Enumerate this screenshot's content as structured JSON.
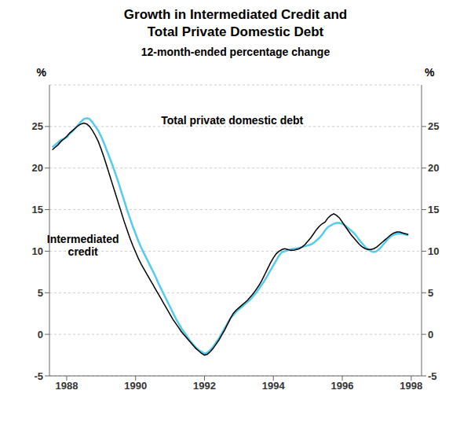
{
  "chart_data": {
    "type": "line",
    "title": "Growth in Intermediated Credit and\nTotal Private Domestic Debt",
    "subtitle": "12-month-ended percentage change",
    "ylabel": "%",
    "y2label": "%",
    "annotations": [
      "Total private domestic debt",
      "Intermediated\ncredit"
    ],
    "grid": true,
    "xlim": [
      1987.5,
      1998.3
    ],
    "xticks": [
      1988,
      1990,
      1992,
      1994,
      1996,
      1998
    ],
    "ylim": [
      -5,
      30
    ],
    "yticks": [
      -5,
      0,
      5,
      10,
      15,
      20,
      25
    ],
    "y2lim": [
      -5,
      30
    ],
    "y2ticks": [
      -5,
      0,
      5,
      10,
      15,
      20,
      25
    ],
    "x": [
      1987.583,
      1987.667,
      1987.75,
      1987.833,
      1987.917,
      1988.0,
      1988.083,
      1988.167,
      1988.25,
      1988.333,
      1988.417,
      1988.5,
      1988.583,
      1988.667,
      1988.75,
      1988.833,
      1988.917,
      1989.0,
      1989.083,
      1989.167,
      1989.25,
      1989.333,
      1989.417,
      1989.5,
      1989.583,
      1989.667,
      1989.75,
      1989.833,
      1989.917,
      1990.0,
      1990.083,
      1990.167,
      1990.25,
      1990.333,
      1990.417,
      1990.5,
      1990.583,
      1990.667,
      1990.75,
      1990.833,
      1990.917,
      1991.0,
      1991.083,
      1991.167,
      1991.25,
      1991.333,
      1991.417,
      1991.5,
      1991.583,
      1991.667,
      1991.75,
      1991.833,
      1991.917,
      1992.0,
      1992.083,
      1992.167,
      1992.25,
      1992.333,
      1992.417,
      1992.5,
      1992.583,
      1992.667,
      1992.75,
      1992.833,
      1992.917,
      1993.0,
      1993.083,
      1993.167,
      1993.25,
      1993.333,
      1993.417,
      1993.5,
      1993.583,
      1993.667,
      1993.75,
      1993.833,
      1993.917,
      1994.0,
      1994.083,
      1994.167,
      1994.25,
      1994.333,
      1994.417,
      1994.5,
      1994.583,
      1994.667,
      1994.75,
      1994.833,
      1994.917,
      1995.0,
      1995.083,
      1995.167,
      1995.25,
      1995.333,
      1995.417,
      1995.5,
      1995.583,
      1995.667,
      1995.75,
      1995.833,
      1995.917,
      1996.0,
      1996.083,
      1996.167,
      1996.25,
      1996.333,
      1996.417,
      1996.5,
      1996.583,
      1996.667,
      1996.75,
      1996.833,
      1996.917,
      1997.0,
      1997.083,
      1997.167,
      1997.25,
      1997.333,
      1997.417,
      1997.5,
      1997.583,
      1997.667,
      1997.75,
      1997.833,
      1997.917
    ],
    "series": [
      {
        "color": "#55ccee",
        "values": [
          22.5,
          22.8,
          23.1,
          23.4,
          23.5,
          23.7,
          24.1,
          24.4,
          24.8,
          25.2,
          25.6,
          25.9,
          26.0,
          25.9,
          25.5,
          25.0,
          24.5,
          23.8,
          23.0,
          22.1,
          21.2,
          20.3,
          19.3,
          18.3,
          17.2,
          16.1,
          15.0,
          14.0,
          13.0,
          12.1,
          11.2,
          10.4,
          9.7,
          9.0,
          8.3,
          7.6,
          6.9,
          6.1,
          5.4,
          4.7,
          4.0,
          3.3,
          2.6,
          1.9,
          1.3,
          0.7,
          0.2,
          -0.3,
          -0.8,
          -1.2,
          -1.6,
          -1.9,
          -2.1,
          -2.3,
          -2.2,
          -1.9,
          -1.5,
          -1.0,
          -0.5,
          0.1,
          0.7,
          1.3,
          1.9,
          2.3,
          2.7,
          3.0,
          3.3,
          3.6,
          3.9,
          4.2,
          4.6,
          5.0,
          5.5,
          6.0,
          6.5,
          7.1,
          7.7,
          8.3,
          8.9,
          9.5,
          9.9,
          10.0,
          10.1,
          10.2,
          10.3,
          10.3,
          10.4,
          10.5,
          10.6,
          10.7,
          10.8,
          11.0,
          11.3,
          11.6,
          12.0,
          12.5,
          12.9,
          13.1,
          13.3,
          13.4,
          13.4,
          13.3,
          13.1,
          12.8,
          12.5,
          12.2,
          11.8,
          11.3,
          10.9,
          10.5,
          10.2,
          10.0,
          9.9,
          10.0,
          10.3,
          10.7,
          11.1,
          11.5,
          11.8,
          12.0,
          12.1,
          12.1,
          12.1,
          12.0,
          11.9
        ]
      },
      {
        "color": "#000000",
        "values": [
          22.2,
          22.5,
          22.8,
          23.2,
          23.5,
          23.8,
          24.2,
          24.5,
          24.8,
          25.1,
          25.3,
          25.4,
          25.3,
          25.0,
          24.5,
          23.9,
          23.2,
          22.3,
          21.3,
          20.2,
          19.1,
          18.0,
          16.9,
          15.8,
          14.7,
          13.6,
          12.6,
          11.6,
          10.7,
          9.9,
          9.1,
          8.4,
          7.8,
          7.2,
          6.6,
          6.0,
          5.4,
          4.8,
          4.2,
          3.6,
          3.0,
          2.4,
          1.8,
          1.3,
          0.8,
          0.3,
          -0.1,
          -0.5,
          -0.9,
          -1.3,
          -1.7,
          -2.0,
          -2.3,
          -2.5,
          -2.4,
          -2.1,
          -1.7,
          -1.2,
          -0.7,
          -0.1,
          0.5,
          1.2,
          1.9,
          2.5,
          2.9,
          3.2,
          3.5,
          3.8,
          4.1,
          4.5,
          4.9,
          5.4,
          5.9,
          6.5,
          7.2,
          7.9,
          8.6,
          9.2,
          9.7,
          10.0,
          10.2,
          10.3,
          10.2,
          10.1,
          10.1,
          10.2,
          10.3,
          10.5,
          10.8,
          11.2,
          11.6,
          12.1,
          12.6,
          13.0,
          13.3,
          13.5,
          14.0,
          14.3,
          14.5,
          14.3,
          14.0,
          13.5,
          13.0,
          12.5,
          12.0,
          11.6,
          11.2,
          10.8,
          10.5,
          10.3,
          10.2,
          10.2,
          10.3,
          10.5,
          10.8,
          11.1,
          11.4,
          11.7,
          12.0,
          12.2,
          12.3,
          12.3,
          12.2,
          12.1,
          12.0
        ]
      }
    ]
  }
}
